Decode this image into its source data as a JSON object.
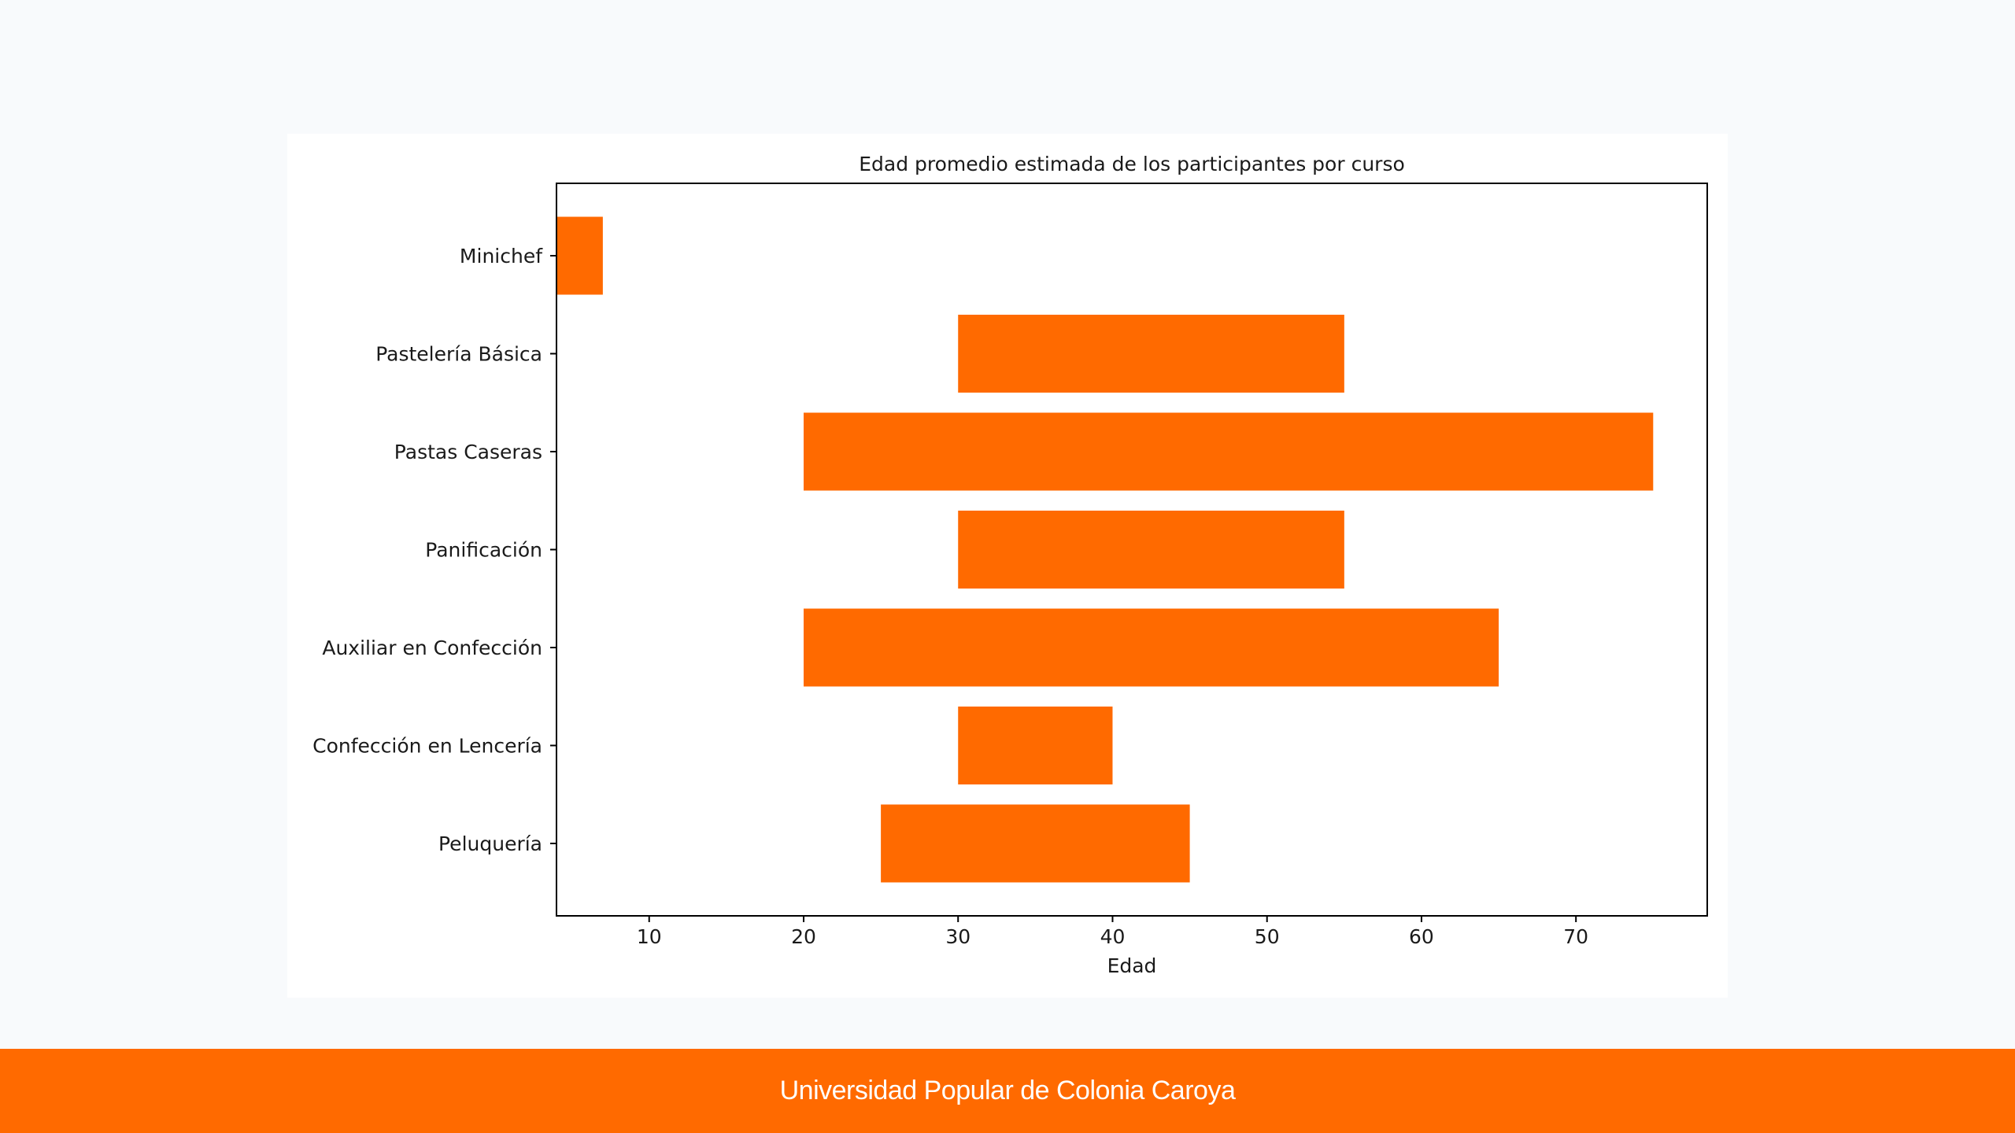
{
  "footer": {
    "text": "Universidad Popular de Colonia Caroya"
  },
  "colors": {
    "accent": "#ff6a00",
    "page_background": "#f8fafc",
    "card_background": "#ffffff"
  },
  "chart_data": {
    "type": "bar",
    "orientation": "horizontal",
    "title": "Edad promedio estimada de los participantes por curso",
    "xlabel": "Edad",
    "ylabel": "",
    "xlim": [
      4,
      78.5
    ],
    "xticks": [
      10,
      20,
      30,
      40,
      50,
      60,
      70
    ],
    "grid": false,
    "categories": [
      "Minichef",
      "Pastelería Básica",
      "Pastas Caseras",
      "Panificación",
      "Auxiliar en Confección",
      "Confección en Lencería",
      "Peluquería"
    ],
    "ranges": [
      [
        4,
        7
      ],
      [
        30,
        55
      ],
      [
        20,
        75
      ],
      [
        30,
        55
      ],
      [
        20,
        65
      ],
      [
        30,
        40
      ],
      [
        25,
        45
      ]
    ],
    "bar_color": "#ff6a00"
  }
}
